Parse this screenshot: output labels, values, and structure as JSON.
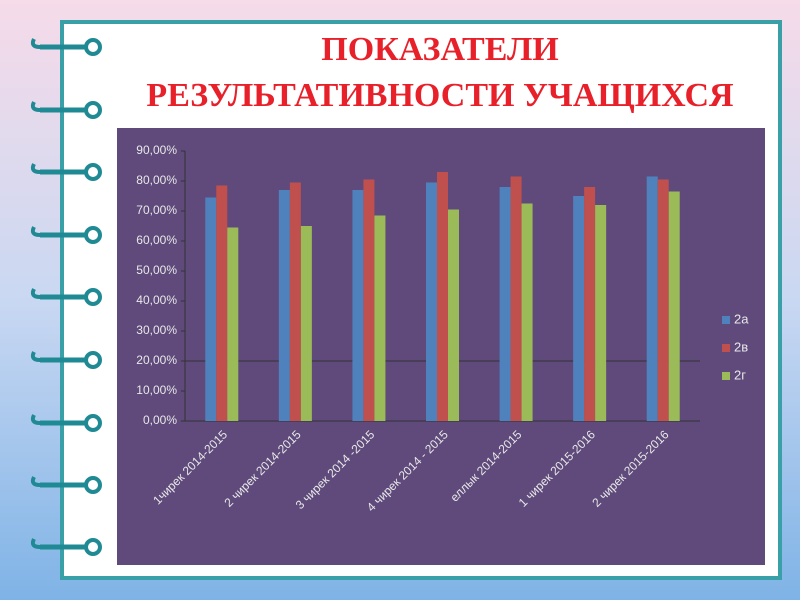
{
  "chart_data": {
    "type": "bar",
    "title": [
      "ПОКАЗАТЕЛИ",
      "РЕЗУЛЬТАТИВНОСТИ УЧАЩИХСЯ"
    ],
    "categories": [
      "1чирек  2014-2015",
      "2 чирек 2014-2015",
      "3 чирек 2014 -2015",
      "4 чирек 2014 - 2015",
      "еллык  2014-2015",
      "1 чирек 2015-2016",
      "2 чирек 2015-2016"
    ],
    "series": [
      {
        "name": "2а",
        "color": "#4f81bd",
        "values": [
          74.5,
          77,
          77,
          79.5,
          78,
          75,
          81.5
        ]
      },
      {
        "name": "2в",
        "color": "#c0504d",
        "values": [
          78.5,
          79.5,
          80.5,
          83,
          81.5,
          78,
          80.5
        ]
      },
      {
        "name": "2г",
        "color": "#9bbb59",
        "values": [
          64.5,
          65,
          68.5,
          70.5,
          72.5,
          72,
          76.5
        ]
      }
    ],
    "ylim": [
      0,
      90
    ],
    "yticks": [
      {
        "value": 0,
        "label": "0,00%"
      },
      {
        "value": 10,
        "label": "10,00%"
      },
      {
        "value": 20,
        "label": "20,00%"
      },
      {
        "value": 30,
        "label": "30,00%"
      },
      {
        "value": 40,
        "label": "40,00%"
      },
      {
        "value": 50,
        "label": "50,00%"
      },
      {
        "value": 60,
        "label": "60,00%"
      },
      {
        "value": 70,
        "label": "70,00%"
      },
      {
        "value": 80,
        "label": "80,00%"
      },
      {
        "value": 90,
        "label": "90,00%"
      }
    ],
    "hline": 20,
    "legend": "right"
  }
}
